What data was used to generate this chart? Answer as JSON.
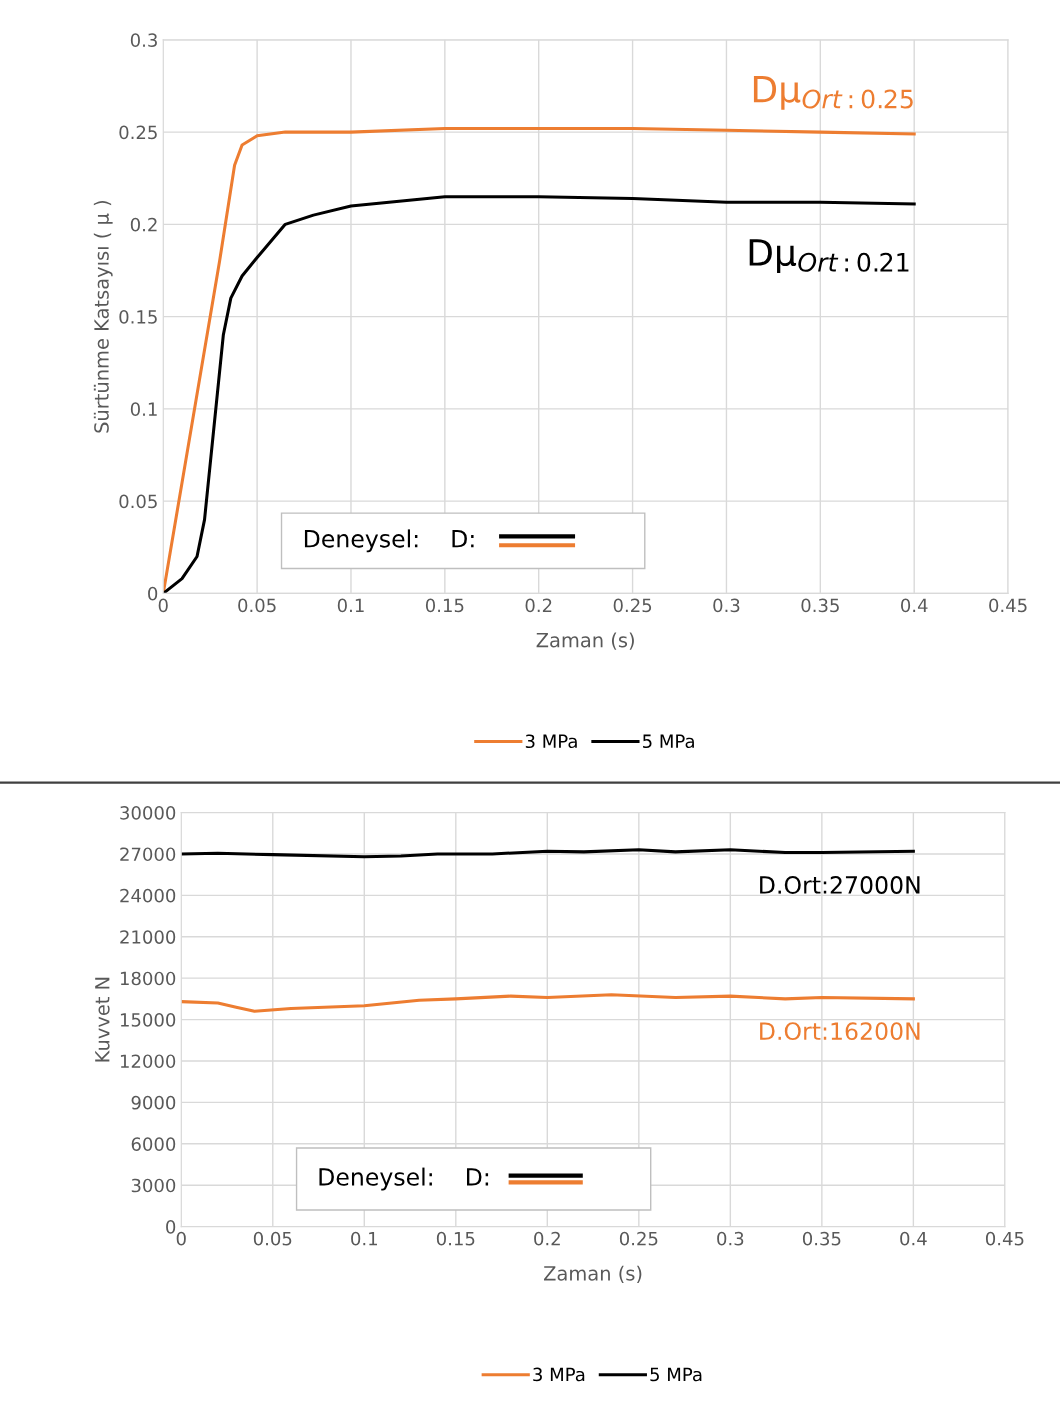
{
  "chart_data": [
    {
      "type": "line",
      "xlabel": "Zaman (s)",
      "ylabel": "Sürtünme Katsayısı ( μ )",
      "xlim": [
        0,
        0.45
      ],
      "xticks": [
        0,
        0.05,
        0.1,
        0.15,
        0.2,
        0.25,
        0.3,
        0.35,
        0.4,
        0.45
      ],
      "ylim": [
        0,
        0.3
      ],
      "yticks": [
        0,
        0.05,
        0.1,
        0.15,
        0.2,
        0.25,
        0.3
      ],
      "grid": true,
      "legend": "bottom",
      "marker": "none",
      "line_style": "solid",
      "series": [
        {
          "name": "3 MPa",
          "color": "#ed7d31",
          "x": [
            0,
            0.01,
            0.02,
            0.03,
            0.038,
            0.042,
            0.05,
            0.065,
            0.1,
            0.15,
            0.2,
            0.25,
            0.3,
            0.35,
            0.4
          ],
          "values": [
            0,
            0.06,
            0.12,
            0.18,
            0.232,
            0.243,
            0.248,
            0.25,
            0.25,
            0.252,
            0.252,
            0.252,
            0.251,
            0.25,
            0.249
          ]
        },
        {
          "name": "5 MPa",
          "color": "#000000",
          "x": [
            0,
            0.01,
            0.018,
            0.022,
            0.027,
            0.032,
            0.036,
            0.042,
            0.05,
            0.065,
            0.08,
            0.1,
            0.15,
            0.2,
            0.25,
            0.3,
            0.35,
            0.4
          ],
          "values": [
            0,
            0.008,
            0.02,
            0.04,
            0.09,
            0.14,
            0.16,
            0.172,
            0.182,
            0.2,
            0.205,
            0.21,
            0.215,
            0.215,
            0.214,
            0.212,
            0.212,
            0.211
          ]
        }
      ],
      "annotations": [
        "Dμ$_{Ort:0.25}$",
        "Dμ$_{Ort:0.21}$",
        "Deneysel:    D:"
      ]
    },
    {
      "type": "line",
      "xlabel": "Zaman (s)",
      "ylabel": "Kuvvet N",
      "xlim": [
        0,
        0.45
      ],
      "xticks": [
        0,
        0.05,
        0.1,
        0.15,
        0.2,
        0.25,
        0.3,
        0.35,
        0.4,
        0.45
      ],
      "ylim": [
        0,
        30000
      ],
      "yticks": [
        0,
        3000,
        6000,
        9000,
        12000,
        15000,
        18000,
        21000,
        24000,
        27000,
        30000
      ],
      "grid": true,
      "legend": "bottom",
      "marker": "none",
      "line_style": "solid",
      "series": [
        {
          "name": "3 MPa",
          "color": "#ed7d31",
          "x": [
            0,
            0.02,
            0.03,
            0.04,
            0.06,
            0.1,
            0.13,
            0.15,
            0.18,
            0.2,
            0.235,
            0.27,
            0.3,
            0.33,
            0.35,
            0.4
          ],
          "values": [
            16300,
            16200,
            15900,
            15600,
            15800,
            16000,
            16400,
            16500,
            16700,
            16600,
            16800,
            16600,
            16700,
            16500,
            16600,
            16500
          ]
        },
        {
          "name": "5 MPa",
          "color": "#000000",
          "x": [
            0,
            0.02,
            0.05,
            0.1,
            0.12,
            0.14,
            0.17,
            0.2,
            0.22,
            0.25,
            0.27,
            0.3,
            0.33,
            0.35,
            0.4
          ],
          "values": [
            27000,
            27050,
            26950,
            26800,
            26850,
            27000,
            27000,
            27200,
            27150,
            27300,
            27150,
            27300,
            27100,
            27100,
            27200
          ]
        }
      ],
      "annotations": [
        "D.Ort:16200N",
        "D.Ort:27000N",
        "Deneysel:    D:"
      ]
    }
  ]
}
